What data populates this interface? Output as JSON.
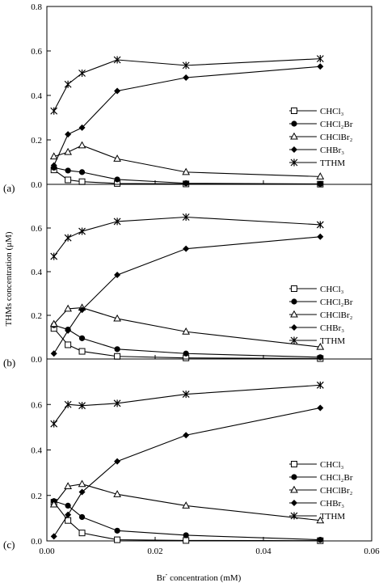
{
  "chart_data": {
    "type": "line",
    "xlabel_base": "Br",
    "xlabel_sup": "-",
    "xlabel_rest": " concentration (mM)",
    "ylabel": "THMs concentration (μM)",
    "xlim": [
      0,
      0.06
    ],
    "x_ticks": [
      "0.00",
      "0.02",
      "0.04",
      "0.06"
    ],
    "x_tick_values": [
      0,
      0.02,
      0.04,
      0.06
    ],
    "x": [
      0.0013,
      0.0039,
      0.0065,
      0.013,
      0.0257,
      0.0505
    ],
    "panels": [
      {
        "label": "(a)",
        "ylim": [
          0,
          0.8
        ],
        "y_ticks": [
          "0.0",
          "0.2",
          "0.4",
          "0.6",
          "0.8"
        ],
        "y_tick_values": [
          0,
          0.2,
          0.4,
          0.6,
          0.8
        ],
        "legend": [
          "CHCl₃",
          "CHCl₂Br",
          "CHClBr₂",
          "CHBr₃",
          "TTHM"
        ],
        "series": [
          {
            "name": "CHCl3",
            "marker": "open-square",
            "values": [
              0.065,
              0.02,
              0.012,
              0.004,
              0.002,
              0.001
            ]
          },
          {
            "name": "CHCl2Br",
            "marker": "filled-circle",
            "values": [
              0.075,
              0.062,
              0.055,
              0.022,
              0.005,
              0.002
            ]
          },
          {
            "name": "CHClBr2",
            "marker": "open-triangle",
            "values": [
              0.125,
              0.145,
              0.175,
              0.115,
              0.055,
              0.035
            ]
          },
          {
            "name": "CHBr3",
            "marker": "filled-diamond",
            "values": [
              0.085,
              0.225,
              0.255,
              0.42,
              0.48,
              0.53
            ]
          },
          {
            "name": "TTHM",
            "marker": "asterisk",
            "values": [
              0.33,
              0.45,
              0.5,
              0.56,
              0.535,
              0.565
            ]
          }
        ]
      },
      {
        "label": "(b)",
        "ylim": [
          0,
          0.8
        ],
        "y_ticks": [
          "0.0",
          "0.2",
          "0.4",
          "0.6"
        ],
        "y_tick_values": [
          0,
          0.2,
          0.4,
          0.6
        ],
        "legend": [
          "CHCl₃",
          "CHCl₂Br",
          "CHClBr₂",
          "CHBr₃",
          "TTHM"
        ],
        "series": [
          {
            "name": "CHCl3",
            "marker": "open-square",
            "values": [
              0.14,
              0.065,
              0.035,
              0.012,
              0.005,
              0.002
            ]
          },
          {
            "name": "CHCl2Br",
            "marker": "filled-circle",
            "values": [
              0.155,
              0.135,
              0.095,
              0.045,
              0.025,
              0.008
            ]
          },
          {
            "name": "CHClBr2",
            "marker": "open-triangle",
            "values": [
              0.16,
              0.23,
              0.235,
              0.185,
              0.125,
              0.055
            ]
          },
          {
            "name": "CHBr3",
            "marker": "filled-diamond",
            "values": [
              0.025,
              0.13,
              0.225,
              0.385,
              0.505,
              0.56
            ]
          },
          {
            "name": "TTHM",
            "marker": "asterisk",
            "values": [
              0.47,
              0.555,
              0.585,
              0.63,
              0.65,
              0.615
            ]
          }
        ]
      },
      {
        "label": "(c)",
        "ylim": [
          0,
          0.8
        ],
        "y_ticks": [
          "0.0",
          "0.2",
          "0.4",
          "0.6"
        ],
        "y_tick_values": [
          0,
          0.2,
          0.4,
          0.6
        ],
        "legend": [
          "CHCl₃",
          "CHCl₂Br",
          "CHClBr₂",
          "CHBr₃",
          "TTHM"
        ],
        "series": [
          {
            "name": "CHCl3",
            "marker": "open-square",
            "values": [
              0.17,
              0.09,
              0.035,
              0.005,
              0.002,
              0.001
            ]
          },
          {
            "name": "CHCl2Br",
            "marker": "filled-circle",
            "values": [
              0.175,
              0.155,
              0.105,
              0.045,
              0.025,
              0.005
            ]
          },
          {
            "name": "CHClBr2",
            "marker": "open-triangle",
            "values": [
              0.16,
              0.24,
              0.25,
              0.205,
              0.155,
              0.09
            ]
          },
          {
            "name": "CHBr3",
            "marker": "filled-diamond",
            "values": [
              0.02,
              0.115,
              0.215,
              0.35,
              0.465,
              0.585
            ]
          },
          {
            "name": "TTHM",
            "marker": "asterisk",
            "values": [
              0.515,
              0.6,
              0.595,
              0.605,
              0.645,
              0.685
            ]
          }
        ]
      }
    ]
  }
}
